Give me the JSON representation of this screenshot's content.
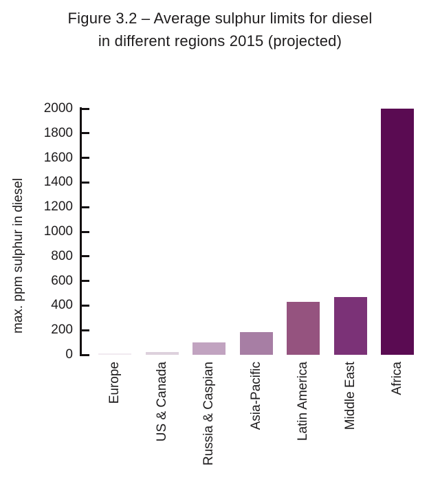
{
  "title": {
    "line1": "Figure 3.2 – Average sulphur limits for diesel",
    "line2": "in different regions 2015 (projected)"
  },
  "chart_data": {
    "type": "bar",
    "title": "Figure 3.2 – Average sulphur limits for diesel in different regions 2015 (projected)",
    "categories": [
      "Europe",
      "US & Canada",
      "Russia & Caspian",
      "Asia-Pacific",
      "Latin America",
      "Middle East",
      "Africa"
    ],
    "values": [
      10,
      20,
      100,
      185,
      430,
      470,
      2000
    ],
    "xlabel": "",
    "ylabel": "max. ppm sulphur in diesel",
    "ylim": [
      0,
      2000
    ],
    "yticks": [
      0,
      200,
      400,
      600,
      800,
      1000,
      1200,
      1400,
      1600,
      1800,
      2000
    ],
    "grid": false,
    "legend": "none",
    "bar_colors": [
      "#f1eaf0",
      "#ddd1dc",
      "#c1a3c0",
      "#a77ea4",
      "#95537f",
      "#7b3277",
      "#5a0b52"
    ],
    "axis_color": "#141011",
    "text_color": "#1d1b1c",
    "background": "#ffffff"
  }
}
